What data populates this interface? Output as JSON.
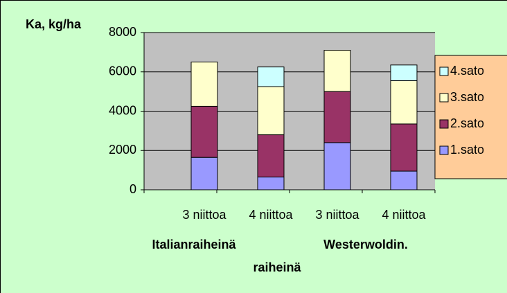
{
  "chart_data": {
    "type": "stacked_bar",
    "y_axis_title": "Ka, kg/ha",
    "categories": [
      "3 niittoa",
      "4 niittoa",
      "3 niittoa",
      "4 niittoa"
    ],
    "groups": [
      [
        "Italianraiheinä"
      ],
      [
        "Westerwoldin.",
        "raiheinä"
      ]
    ],
    "series": [
      {
        "name": "1.sato",
        "color": "#9999ff",
        "values": [
          1650,
          650,
          2400,
          950
        ]
      },
      {
        "name": "2.sato",
        "color": "#993366",
        "values": [
          2600,
          2150,
          2600,
          2400
        ]
      },
      {
        "name": "3.sato",
        "color": "#ffffcc",
        "values": [
          2250,
          2450,
          2100,
          2200
        ]
      },
      {
        "name": "4.sato",
        "color": "#ccffff",
        "values": [
          null,
          1000,
          null,
          800
        ]
      }
    ],
    "ylim": [
      0,
      8000
    ],
    "yticks": [
      0,
      2000,
      4000,
      6000,
      8000
    ],
    "grid": true,
    "legend": "right"
  }
}
